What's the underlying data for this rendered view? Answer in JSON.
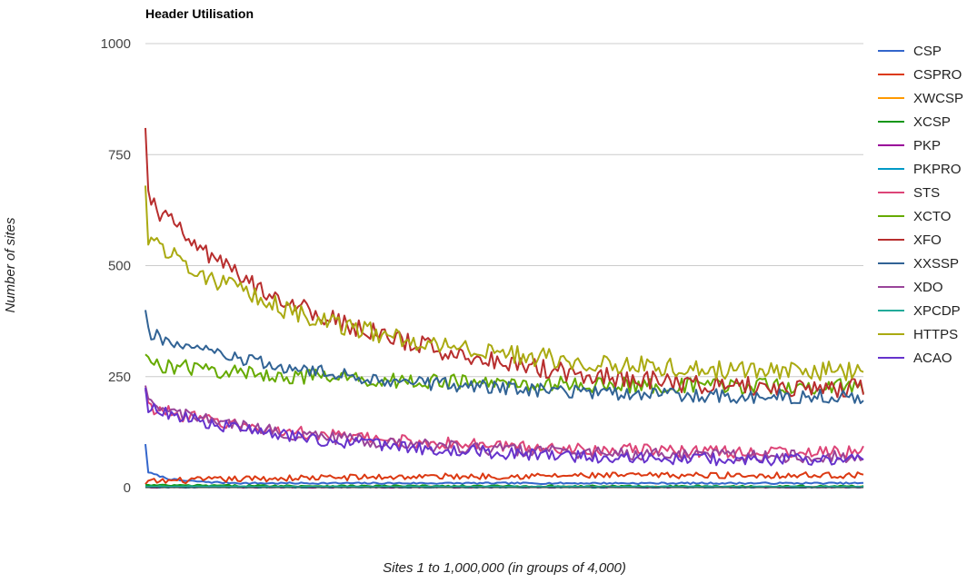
{
  "chart_data": {
    "type": "line",
    "title": "Header Utilisation",
    "xlabel": "Sites 1 to 1,000,000 (in groups of 4,000)",
    "ylabel": "Number of sites",
    "ylim": [
      0,
      1000
    ],
    "yticks": [
      "0",
      "250",
      "500",
      "750",
      "1000"
    ],
    "grid": true,
    "legend_position": "right",
    "x_groups": 250,
    "x_step": 10,
    "series": [
      {
        "name": "CSP",
        "color": "#3366cc",
        "values": [
          98,
          35,
          32,
          30,
          28,
          26,
          24,
          22,
          20,
          19,
          18,
          17,
          16,
          16,
          15,
          15,
          15,
          14,
          14,
          14,
          13,
          13,
          13,
          12,
          12,
          12,
          12,
          11,
          11,
          11,
          11,
          11,
          11,
          10,
          10,
          10,
          10,
          10,
          10,
          10,
          10,
          10,
          10,
          10,
          10,
          10,
          10,
          10,
          10,
          10,
          10,
          10,
          10,
          10,
          10,
          10,
          10,
          10,
          10,
          10,
          10,
          10,
          10,
          10,
          10,
          10,
          10,
          10,
          10,
          10,
          10,
          10,
          10,
          10,
          10,
          10,
          10,
          10,
          10,
          10,
          10,
          10,
          10,
          10,
          10,
          10,
          10,
          10,
          10,
          10,
          10,
          10,
          10,
          10,
          10,
          10,
          10,
          10,
          10,
          10,
          10,
          10,
          10,
          10,
          10,
          10,
          10,
          10,
          10,
          10,
          10,
          10,
          10,
          10,
          10,
          10,
          10,
          10,
          10,
          10,
          10,
          10,
          10,
          10,
          10,
          10,
          10,
          10,
          10,
          10,
          10,
          10,
          10,
          10,
          10,
          10,
          10,
          10,
          10,
          10,
          10,
          10,
          10,
          10,
          10,
          10,
          10,
          10,
          10,
          10,
          10,
          10,
          10,
          10,
          10,
          10,
          10,
          10,
          10,
          10,
          10,
          10,
          10,
          10,
          10,
          10,
          10,
          10,
          10,
          10,
          10,
          10,
          10,
          10,
          10,
          10,
          10,
          10,
          10,
          10,
          10,
          10,
          10,
          10,
          10,
          10,
          10,
          10,
          10,
          10,
          10,
          10,
          10,
          10,
          10,
          10,
          10,
          10,
          10,
          10,
          10,
          10,
          10,
          10,
          10,
          10,
          10,
          10,
          10,
          10,
          10,
          10,
          10,
          10,
          10,
          10,
          10,
          10,
          10,
          10,
          10,
          10,
          10,
          10,
          10,
          10,
          10,
          10,
          10,
          10,
          10,
          10,
          10,
          10,
          10,
          10,
          10,
          10,
          10,
          10,
          10,
          10,
          10,
          10,
          10,
          10,
          10,
          10,
          10,
          10,
          10,
          10,
          10,
          10,
          10,
          10,
          10,
          10,
          10,
          10
        ],
        "noise": 6,
        "end": 8
      },
      {
        "name": "CSPRO",
        "color": "#dc3912",
        "start": 8,
        "end": 28,
        "noise": 7
      },
      {
        "name": "XWCSP",
        "color": "#ff9900",
        "start": 2,
        "end": 2,
        "noise": 1
      },
      {
        "name": "XCSP",
        "color": "#109618",
        "start": 6,
        "end": 3,
        "noise": 2
      },
      {
        "name": "PKP",
        "color": "#990099",
        "start": 1,
        "end": 1,
        "noise": 1
      },
      {
        "name": "PKPRO",
        "color": "#0099c6",
        "start": 1,
        "end": 1,
        "noise": 1
      },
      {
        "name": "STS",
        "color": "#dd4477",
        "start": 220,
        "end": 80,
        "noise": 14
      },
      {
        "name": "XCTO",
        "color": "#66aa00",
        "start": 300,
        "end": 228,
        "noise": 18
      },
      {
        "name": "XFO",
        "color": "#b82e2e",
        "start": 810,
        "end": 225,
        "noise": 22
      },
      {
        "name": "XXSSP",
        "color": "#316395",
        "start": 400,
        "end": 205,
        "noise": 16
      },
      {
        "name": "XDO",
        "color": "#994499",
        "start": 230,
        "end": 70,
        "noise": 14
      },
      {
        "name": "XPCDP",
        "color": "#22aa99",
        "start": 3,
        "end": 2,
        "noise": 1
      },
      {
        "name": "HTTPS",
        "color": "#aaaa11",
        "start": 680,
        "end": 262,
        "noise": 22
      },
      {
        "name": "ACAO",
        "color": "#6633cc",
        "start": 225,
        "end": 62,
        "noise": 14
      }
    ]
  }
}
